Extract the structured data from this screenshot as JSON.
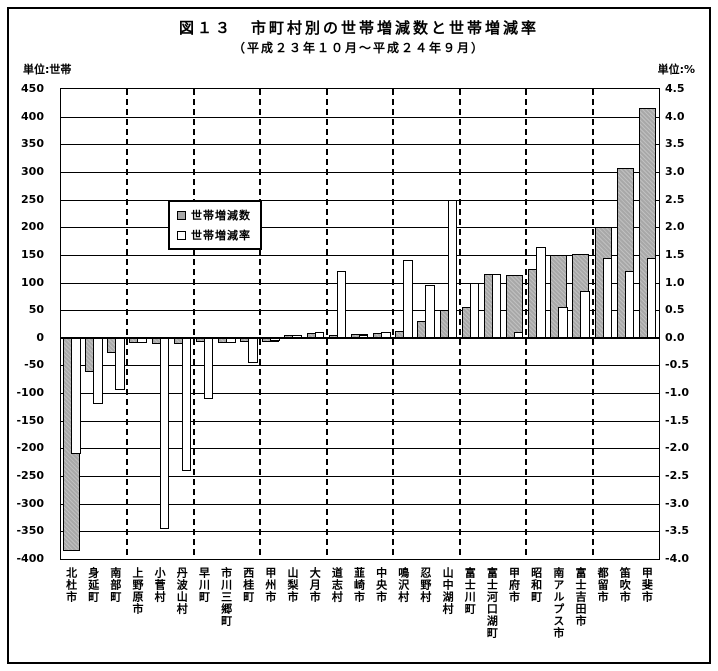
{
  "figure": {
    "title": "図１３　市町村別の世帯増減数と世帯増減率",
    "subtitle": "（平成２３年１０月～平成２４年９月）",
    "unit_left": "単位:世帯",
    "unit_right": "単位:%"
  },
  "legend": {
    "items": [
      {
        "label": "世帯増減数",
        "swatch": "gray"
      },
      {
        "label": "世帯増減率",
        "swatch": "white"
      }
    ]
  },
  "colors": {
    "bar_count_fill": "#a8a8a8",
    "bar_rate_fill": "#ffffff",
    "grid_and_border": "#000000",
    "background": "#ffffff"
  },
  "chart_data": {
    "type": "bar",
    "title": "図１３　市町村別の世帯増減数と世帯増減率",
    "subtitle": "（平成２３年１０月～平成２４年９月）",
    "categories": [
      "北杜市",
      "身延町",
      "南部町",
      "上野原市",
      "小菅村",
      "丹波山村",
      "早川町",
      "市川三郷町",
      "西桂町",
      "甲州市",
      "山梨市",
      "大月市",
      "道志村",
      "韮崎市",
      "中央市",
      "鳴沢村",
      "忍野村",
      "山中湖村",
      "富士川町",
      "富士河口湖町",
      "甲府市",
      "昭和町",
      "南アルプス市",
      "富士吉田市",
      "都留市",
      "笛吹市",
      "甲斐市"
    ],
    "series": [
      {
        "name": "世帯増減数",
        "axis": "left",
        "unit": "世帯",
        "style": "gray",
        "values": [
          -385,
          -62,
          -27,
          -10,
          -11,
          -11,
          -8,
          -10,
          -7,
          -8,
          5,
          8,
          5,
          7,
          8,
          12,
          30,
          50,
          55,
          115,
          114,
          125,
          150,
          152,
          200,
          307,
          415
        ]
      },
      {
        "name": "世帯増減率",
        "axis": "right",
        "unit": "%",
        "style": "white",
        "values": [
          -2.1,
          -1.2,
          -0.95,
          -0.1,
          -3.45,
          -2.4,
          -1.1,
          -0.1,
          -0.45,
          -0.05,
          0.05,
          0.1,
          1.2,
          0.05,
          0.1,
          1.4,
          0.95,
          2.5,
          1.0,
          1.15,
          0.1,
          1.65,
          0.55,
          0.85,
          1.45,
          1.2,
          1.45
        ]
      }
    ],
    "left_axis": {
      "min": -400,
      "max": 450,
      "step": 50,
      "ticks": [
        450,
        400,
        350,
        300,
        250,
        200,
        150,
        100,
        50,
        0,
        -50,
        -100,
        -150,
        -200,
        -250,
        -300,
        -350,
        -400
      ],
      "tick_labels": [
        "450",
        "400",
        "350",
        "300",
        "250",
        "200",
        "150",
        "100",
        "50",
        "0",
        "-50",
        "-100",
        "-150",
        "-200",
        "-250",
        "-300",
        "-350",
        "-400"
      ]
    },
    "right_axis": {
      "min": -4.0,
      "max": 4.5,
      "step": 0.5,
      "ticks": [
        4.5,
        4.0,
        3.5,
        3.0,
        2.5,
        2.0,
        1.5,
        1.0,
        0.5,
        0.0,
        -0.5,
        -1.0,
        -1.5,
        -2.0,
        -2.5,
        -3.0,
        -3.5,
        -4.0
      ],
      "tick_labels": [
        "4.5",
        "4.0",
        "3.5",
        "3.0",
        "2.5",
        "2.0",
        "1.5",
        "1.0",
        "0.5",
        "0.0",
        "-0.5",
        "-1.0",
        "-1.5",
        "-2.0",
        "-2.5",
        "-3.0",
        "-3.5",
        "-4.0"
      ]
    },
    "grid": {
      "horizontal": "solid",
      "vertical": "dashed",
      "v_boundaries_after_category": [
        3,
        6,
        9,
        12,
        15,
        18,
        21,
        24
      ]
    },
    "legend_position": "upper-left-of-plot",
    "rate_to_count_scale": 100
  }
}
